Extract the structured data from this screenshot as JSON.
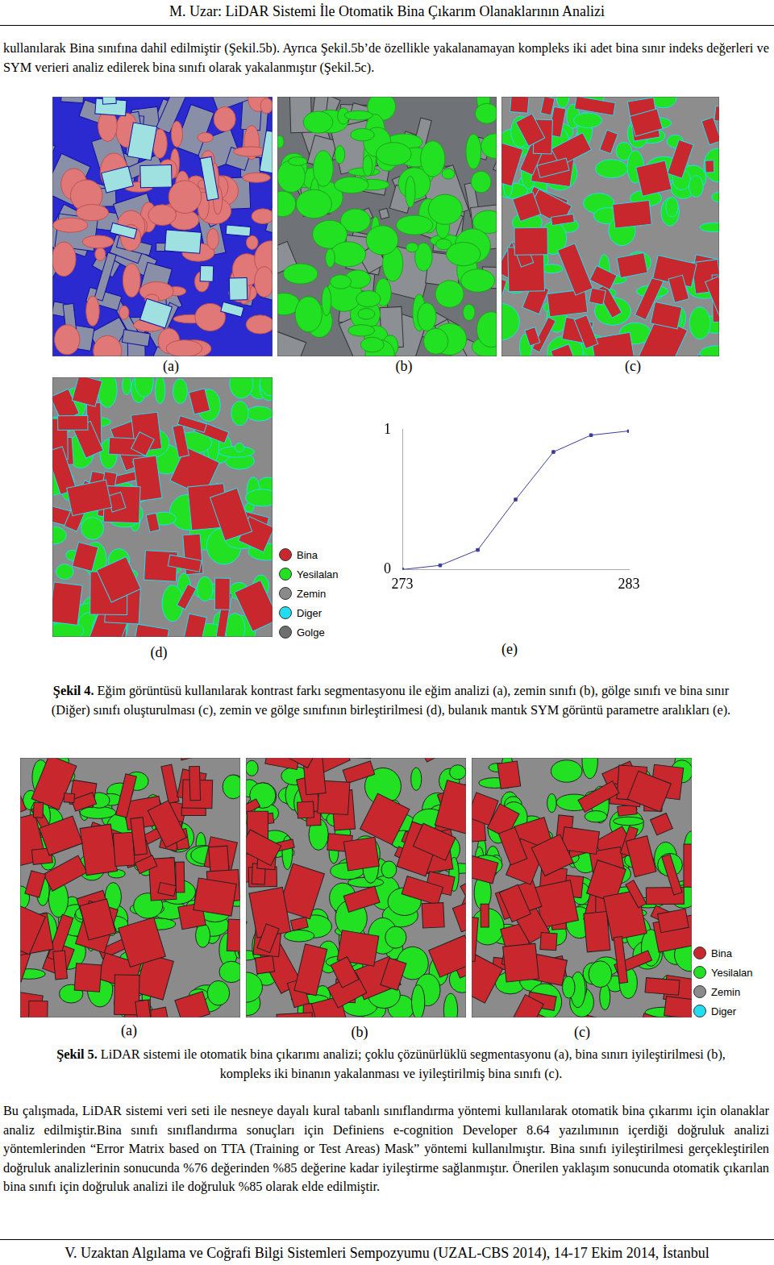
{
  "header": "M. Uzar: LiDAR Sistemi İle Otomatik Bina Çıkarım Olanaklarının Analizi",
  "intro": "kullanılarak Bina sınıfına dahil edilmiştir (Şekil.5b). Ayrıca Şekil.5b’de özellikle yakalanamayan kompleks iki adet bina sınır indeks değerleri ve SYM verieri analiz edilerek bina sınıfı olarak yakalanmıştır (Şekil.5c).",
  "figure4": {
    "panels": [
      "(a)",
      "(b)",
      "(c)",
      "(d)",
      "(e)"
    ],
    "legend": [
      {
        "label": "Bina",
        "color": "#c8282d"
      },
      {
        "label": "Yesilalan",
        "color": "#22e022"
      },
      {
        "label": "Zemin",
        "color": "#8a8a8a"
      },
      {
        "label": "Diger",
        "color": "#22dcef"
      },
      {
        "label": "Golge",
        "color": "#6e6e6e"
      }
    ],
    "caption_label": "Şekil 4.",
    "caption_text": "Eğim görüntüsü kullanılarak kontrast farkı segmentasyonu ile eğim analizi (a), zemin sınıfı (b), gölge sınıfı ve bina sınır (Diğer) sınıfı oluşturulması (c), zemin ve gölge sınıfının birleştirilmesi (d), bulanık mantık SYM görüntü parametre aralıkları (e)."
  },
  "chart_data": {
    "type": "line",
    "x": [
      273,
      274.67,
      276.33,
      278,
      279.67,
      281.33,
      283
    ],
    "values": [
      0,
      0.03,
      0.14,
      0.5,
      0.84,
      0.96,
      0.99
    ],
    "color": "#3c3c9c",
    "marker": "square",
    "xlim": [
      273,
      283
    ],
    "xticks": [
      273,
      283
    ],
    "ylim": [
      0,
      1
    ],
    "yticks": [
      0,
      1
    ],
    "grid": false
  },
  "figure5": {
    "panels": [
      "(a)",
      "(b)",
      "(c)"
    ],
    "legend": [
      {
        "label": "Bina",
        "color": "#c8282d"
      },
      {
        "label": "Yesilalan",
        "color": "#22e022"
      },
      {
        "label": "Zemin",
        "color": "#8a8a8a"
      },
      {
        "label": "Diger",
        "color": "#22dcef"
      }
    ],
    "caption_label": "Şekil 5.",
    "caption_text": "LiDAR sistemi ile otomatik bina çıkarımı analizi; çoklu çözünürlüklü segmentasyonu (a), bina sınırı iyileştirilmesi (b), kompleks iki binanın yakalanması ve iyileştirilmiş bina sınıfı (c)."
  },
  "body": "Bu çalışmada, LiDAR sistemi veri seti ile nesneye dayalı kural tabanlı sınıflandırma yöntemi kullanılarak otomatik bina çıkarımı için olanaklar analiz edilmiştir.Bina sınıfı sınıflandırma sonuçları için Definiens e-cognition Developer 8.64 yazılımının içerdiği doğruluk analizi yöntemlerinden “Error Matrix based on TTA (Training or Test Areas) Mask” yöntemi kullanılmıştır. Bina sınıfı iyileştirilmesi gerçekleştirilen doğruluk analizlerinin sonucunda %76 değerinden %85 değerine kadar iyileştirme sağlanmıştır. Önerilen yaklaşım sonucunda otomatik çıkarılan bina sınıfı için doğruluk analizi ile doğruluk %85 olarak elde edilmiştir.",
  "footer": "V. Uzaktan Algılama ve Coğrafi Bilgi Sistemleri Sempozyumu (UZAL-CBS 2014), 14-17 Ekim 2014, İstanbul"
}
